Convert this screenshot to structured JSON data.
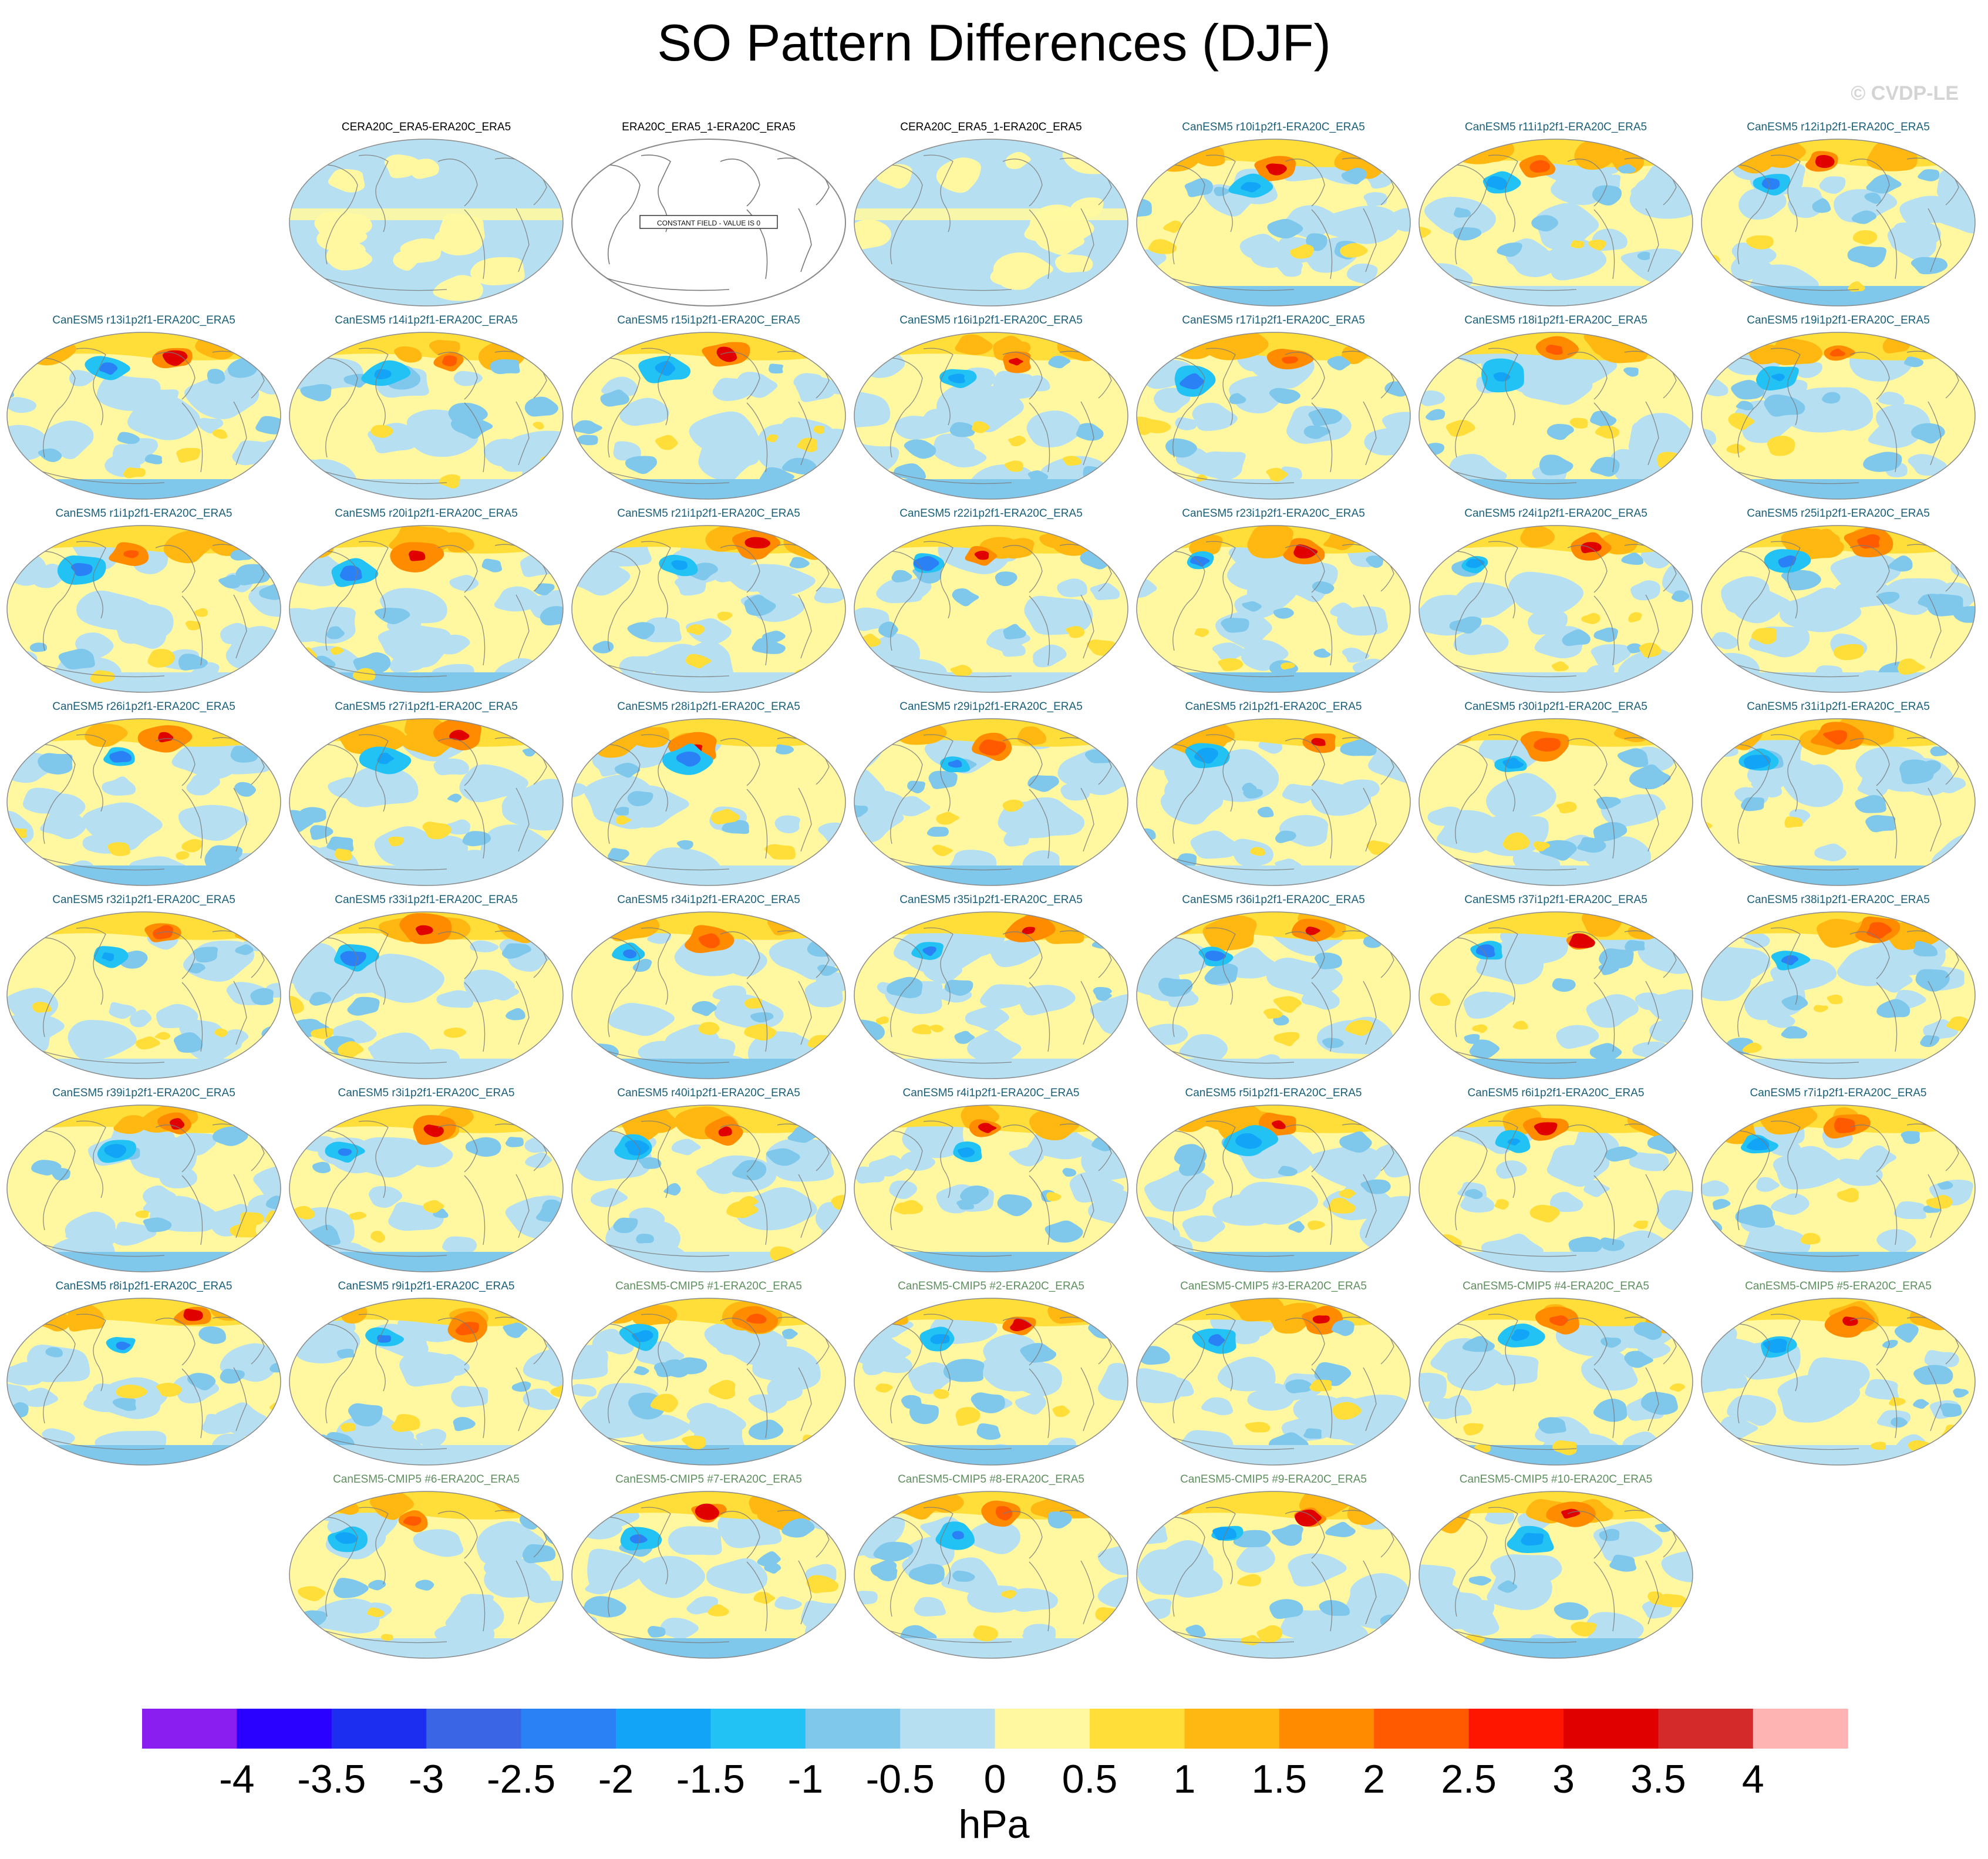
{
  "figure": {
    "title": "SO Pattern Differences (DJF)",
    "watermark": "© CVDP-LE"
  },
  "colors": {
    "title_obs": "#000000",
    "title_member": "#1a5f7a",
    "title_cmip": "#5e8f5e",
    "coast": "#7a7a7a",
    "outline": "#8a8a8a"
  },
  "chart_data": {
    "type": "map-grid",
    "title": "SO Pattern Differences (DJF)",
    "units": "hPa",
    "grid_columns": 7,
    "colorbar": {
      "levels": [
        -4,
        -3.5,
        -3,
        -2.5,
        -2,
        -1.5,
        -1,
        -0.5,
        0,
        0.5,
        1,
        1.5,
        2,
        2.5,
        3,
        3.5,
        4
      ],
      "tick_labels": [
        "-4",
        "-3.5",
        "-3",
        "-2.5",
        "-2",
        "-1.5",
        "-1",
        "-0.5",
        "0",
        "0.5",
        "1",
        "1.5",
        "2",
        "2.5",
        "3",
        "3.5",
        "4"
      ],
      "colors": [
        "#8a1ef0",
        "#2a00ff",
        "#1c2ef0",
        "#3a66e6",
        "#2a80f5",
        "#12a4f7",
        "#22c2f5",
        "#7fc8ec",
        "#b6e0f2",
        "#fff8a0",
        "#ffde3a",
        "#ffb811",
        "#ff8c00",
        "#ff5a00",
        "#ff1600",
        "#e00000",
        "#d42a2a",
        "#ffb4b4"
      ]
    },
    "panels": [
      {
        "row": 0,
        "col": 1,
        "title": "CERA20C_ERA5-ERA20C_ERA5",
        "kind": "obs",
        "pattern": "near-zero"
      },
      {
        "row": 0,
        "col": 2,
        "title": "ERA20C_ERA5_1-ERA20C_ERA5",
        "kind": "obs",
        "pattern": "constant",
        "note": "CONSTANT FIELD - VALUE IS 0"
      },
      {
        "row": 0,
        "col": 3,
        "title": "CERA20C_ERA5_1-ERA20C_ERA5",
        "kind": "obs",
        "pattern": "near-zero"
      },
      {
        "row": 0,
        "col": 4,
        "title": "CanESM5 r10i1p2f1-ERA20C_ERA5",
        "kind": "member",
        "pattern": "diff"
      },
      {
        "row": 0,
        "col": 5,
        "title": "CanESM5 r11i1p2f1-ERA20C_ERA5",
        "kind": "member",
        "pattern": "diff"
      },
      {
        "row": 0,
        "col": 6,
        "title": "CanESM5 r12i1p2f1-ERA20C_ERA5",
        "kind": "member",
        "pattern": "diff"
      },
      {
        "row": 1,
        "col": 0,
        "title": "CanESM5 r13i1p2f1-ERA20C_ERA5",
        "kind": "member",
        "pattern": "diff"
      },
      {
        "row": 1,
        "col": 1,
        "title": "CanESM5 r14i1p2f1-ERA20C_ERA5",
        "kind": "member",
        "pattern": "diff"
      },
      {
        "row": 1,
        "col": 2,
        "title": "CanESM5 r15i1p2f1-ERA20C_ERA5",
        "kind": "member",
        "pattern": "diff"
      },
      {
        "row": 1,
        "col": 3,
        "title": "CanESM5 r16i1p2f1-ERA20C_ERA5",
        "kind": "member",
        "pattern": "diff"
      },
      {
        "row": 1,
        "col": 4,
        "title": "CanESM5 r17i1p2f1-ERA20C_ERA5",
        "kind": "member",
        "pattern": "diff"
      },
      {
        "row": 1,
        "col": 5,
        "title": "CanESM5 r18i1p2f1-ERA20C_ERA5",
        "kind": "member",
        "pattern": "diff"
      },
      {
        "row": 1,
        "col": 6,
        "title": "CanESM5 r19i1p2f1-ERA20C_ERA5",
        "kind": "member",
        "pattern": "diff"
      },
      {
        "row": 2,
        "col": 0,
        "title": "CanESM5 r1i1p2f1-ERA20C_ERA5",
        "kind": "member",
        "pattern": "diff"
      },
      {
        "row": 2,
        "col": 1,
        "title": "CanESM5 r20i1p2f1-ERA20C_ERA5",
        "kind": "member",
        "pattern": "diff"
      },
      {
        "row": 2,
        "col": 2,
        "title": "CanESM5 r21i1p2f1-ERA20C_ERA5",
        "kind": "member",
        "pattern": "diff"
      },
      {
        "row": 2,
        "col": 3,
        "title": "CanESM5 r22i1p2f1-ERA20C_ERA5",
        "kind": "member",
        "pattern": "diff"
      },
      {
        "row": 2,
        "col": 4,
        "title": "CanESM5 r23i1p2f1-ERA20C_ERA5",
        "kind": "member",
        "pattern": "diff"
      },
      {
        "row": 2,
        "col": 5,
        "title": "CanESM5 r24i1p2f1-ERA20C_ERA5",
        "kind": "member",
        "pattern": "diff"
      },
      {
        "row": 2,
        "col": 6,
        "title": "CanESM5 r25i1p2f1-ERA20C_ERA5",
        "kind": "member",
        "pattern": "diff"
      },
      {
        "row": 3,
        "col": 0,
        "title": "CanESM5 r26i1p2f1-ERA20C_ERA5",
        "kind": "member",
        "pattern": "diff"
      },
      {
        "row": 3,
        "col": 1,
        "title": "CanESM5 r27i1p2f1-ERA20C_ERA5",
        "kind": "member",
        "pattern": "diff"
      },
      {
        "row": 3,
        "col": 2,
        "title": "CanESM5 r28i1p2f1-ERA20C_ERA5",
        "kind": "member",
        "pattern": "diff"
      },
      {
        "row": 3,
        "col": 3,
        "title": "CanESM5 r29i1p2f1-ERA20C_ERA5",
        "kind": "member",
        "pattern": "diff"
      },
      {
        "row": 3,
        "col": 4,
        "title": "CanESM5 r2i1p2f1-ERA20C_ERA5",
        "kind": "member",
        "pattern": "diff"
      },
      {
        "row": 3,
        "col": 5,
        "title": "CanESM5 r30i1p2f1-ERA20C_ERA5",
        "kind": "member",
        "pattern": "diff"
      },
      {
        "row": 3,
        "col": 6,
        "title": "CanESM5 r31i1p2f1-ERA20C_ERA5",
        "kind": "member",
        "pattern": "diff"
      },
      {
        "row": 4,
        "col": 0,
        "title": "CanESM5 r32i1p2f1-ERA20C_ERA5",
        "kind": "member",
        "pattern": "diff"
      },
      {
        "row": 4,
        "col": 1,
        "title": "CanESM5 r33i1p2f1-ERA20C_ERA5",
        "kind": "member",
        "pattern": "diff"
      },
      {
        "row": 4,
        "col": 2,
        "title": "CanESM5 r34i1p2f1-ERA20C_ERA5",
        "kind": "member",
        "pattern": "diff"
      },
      {
        "row": 4,
        "col": 3,
        "title": "CanESM5 r35i1p2f1-ERA20C_ERA5",
        "kind": "member",
        "pattern": "diff"
      },
      {
        "row": 4,
        "col": 4,
        "title": "CanESM5 r36i1p2f1-ERA20C_ERA5",
        "kind": "member",
        "pattern": "diff"
      },
      {
        "row": 4,
        "col": 5,
        "title": "CanESM5 r37i1p2f1-ERA20C_ERA5",
        "kind": "member",
        "pattern": "diff"
      },
      {
        "row": 4,
        "col": 6,
        "title": "CanESM5 r38i1p2f1-ERA20C_ERA5",
        "kind": "member",
        "pattern": "diff"
      },
      {
        "row": 5,
        "col": 0,
        "title": "CanESM5 r39i1p2f1-ERA20C_ERA5",
        "kind": "member",
        "pattern": "diff"
      },
      {
        "row": 5,
        "col": 1,
        "title": "CanESM5 r3i1p2f1-ERA20C_ERA5",
        "kind": "member",
        "pattern": "diff"
      },
      {
        "row": 5,
        "col": 2,
        "title": "CanESM5 r40i1p2f1-ERA20C_ERA5",
        "kind": "member",
        "pattern": "diff"
      },
      {
        "row": 5,
        "col": 3,
        "title": "CanESM5 r4i1p2f1-ERA20C_ERA5",
        "kind": "member",
        "pattern": "diff"
      },
      {
        "row": 5,
        "col": 4,
        "title": "CanESM5 r5i1p2f1-ERA20C_ERA5",
        "kind": "member",
        "pattern": "diff"
      },
      {
        "row": 5,
        "col": 5,
        "title": "CanESM5 r6i1p2f1-ERA20C_ERA5",
        "kind": "member",
        "pattern": "diff"
      },
      {
        "row": 5,
        "col": 6,
        "title": "CanESM5 r7i1p2f1-ERA20C_ERA5",
        "kind": "member",
        "pattern": "diff"
      },
      {
        "row": 6,
        "col": 0,
        "title": "CanESM5 r8i1p2f1-ERA20C_ERA5",
        "kind": "member",
        "pattern": "diff"
      },
      {
        "row": 6,
        "col": 1,
        "title": "CanESM5 r9i1p2f1-ERA20C_ERA5",
        "kind": "member",
        "pattern": "diff"
      },
      {
        "row": 6,
        "col": 2,
        "title": "CanESM5-CMIP5 #1-ERA20C_ERA5",
        "kind": "cmip",
        "pattern": "diff"
      },
      {
        "row": 6,
        "col": 3,
        "title": "CanESM5-CMIP5 #2-ERA20C_ERA5",
        "kind": "cmip",
        "pattern": "diff"
      },
      {
        "row": 6,
        "col": 4,
        "title": "CanESM5-CMIP5 #3-ERA20C_ERA5",
        "kind": "cmip",
        "pattern": "diff"
      },
      {
        "row": 6,
        "col": 5,
        "title": "CanESM5-CMIP5 #4-ERA20C_ERA5",
        "kind": "cmip",
        "pattern": "diff"
      },
      {
        "row": 6,
        "col": 6,
        "title": "CanESM5-CMIP5 #5-ERA20C_ERA5",
        "kind": "cmip",
        "pattern": "diff"
      },
      {
        "row": 7,
        "col": 1,
        "title": "CanESM5-CMIP5 #6-ERA20C_ERA5",
        "kind": "cmip",
        "pattern": "diff"
      },
      {
        "row": 7,
        "col": 2,
        "title": "CanESM5-CMIP5 #7-ERA20C_ERA5",
        "kind": "cmip",
        "pattern": "diff"
      },
      {
        "row": 7,
        "col": 3,
        "title": "CanESM5-CMIP5 #8-ERA20C_ERA5",
        "kind": "cmip",
        "pattern": "diff"
      },
      {
        "row": 7,
        "col": 4,
        "title": "CanESM5-CMIP5 #9-ERA20C_ERA5",
        "kind": "cmip",
        "pattern": "diff"
      },
      {
        "row": 7,
        "col": 5,
        "title": "CanESM5-CMIP5 #10-ERA20C_ERA5",
        "kind": "cmip",
        "pattern": "diff"
      }
    ]
  }
}
